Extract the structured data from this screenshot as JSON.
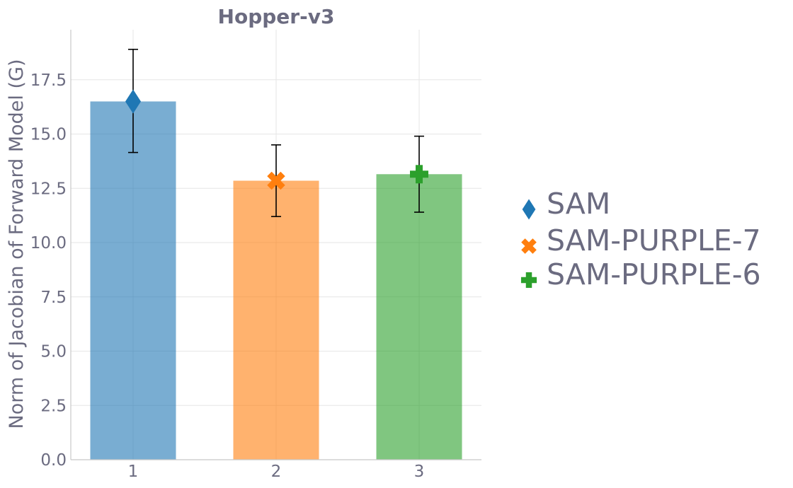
{
  "chart_data": {
    "type": "bar",
    "title": "Hopper-v3",
    "ylabel": "Norm of Jacobian of Forward Model (G)",
    "xlabel": "",
    "categories": [
      "1",
      "2",
      "3"
    ],
    "ylim": [
      0,
      19.8
    ],
    "yticks": [
      0.0,
      2.5,
      5.0,
      7.5,
      10.0,
      12.5,
      15.0,
      17.5
    ],
    "ytick_labels": [
      "0.0",
      "2.5",
      "5.0",
      "7.5",
      "10.0",
      "12.5",
      "15.0",
      "17.5"
    ],
    "grid": true,
    "legend_position": "right",
    "series": [
      {
        "name": "SAM",
        "value": 16.5,
        "err_low": 14.15,
        "err_high": 18.9,
        "color": "#1f77b4",
        "marker": "diamond"
      },
      {
        "name": "SAM-PURPLE-7",
        "value": 12.85,
        "err_low": 11.2,
        "err_high": 14.5,
        "color": "#ff7f0e",
        "marker": "x"
      },
      {
        "name": "SAM-PURPLE-6",
        "value": 13.15,
        "err_low": 11.4,
        "err_high": 14.9,
        "color": "#2ca02c",
        "marker": "plus"
      }
    ]
  }
}
